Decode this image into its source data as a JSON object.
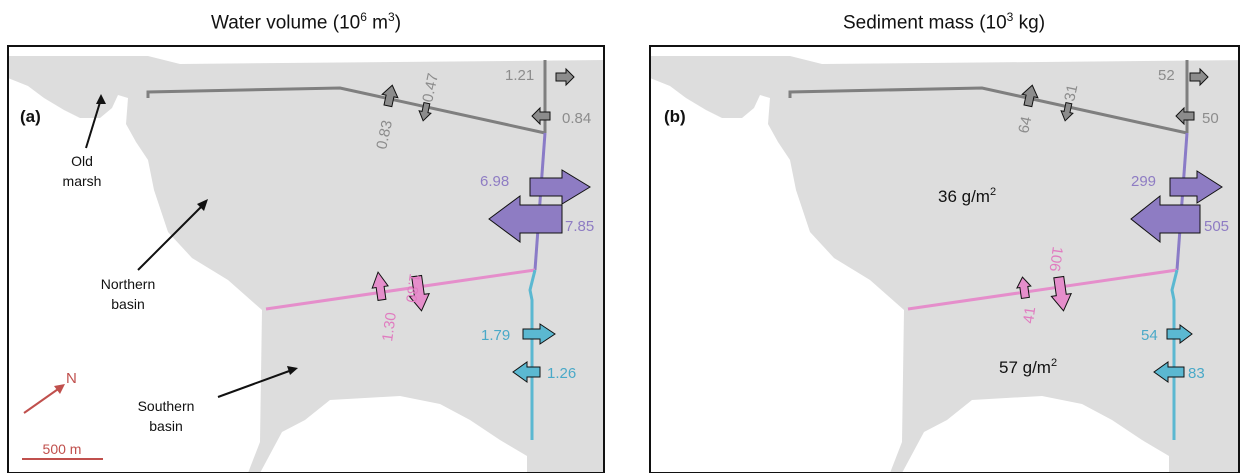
{
  "panels": [
    {
      "id": "a",
      "title": {
        "prefix": "Water volume (10",
        "exp": "6",
        "mid": " m",
        "exp2": "3",
        "suffix": ")"
      },
      "label": "(a)",
      "flux_labels": {
        "gray_out_top": "1.21",
        "gray_in_top": "0.84",
        "gray_west": "0.83",
        "gray_east": "0.47",
        "purple_out": "6.98",
        "purple_in": "7.85",
        "pink_north": "1.30",
        "pink_south": "1.80",
        "blue_out": "1.79",
        "blue_in": "1.26"
      },
      "annotations": {
        "old_marsh": [
          "Old",
          "marsh"
        ],
        "northern_basin": [
          "Northern",
          "basin"
        ],
        "southern_basin": [
          "Southern",
          "basin"
        ],
        "north": "N",
        "scale": "500 m"
      }
    },
    {
      "id": "b",
      "title": {
        "prefix": "Sediment mass (10",
        "exp": "3",
        "mid": " kg)",
        "exp2": "",
        "suffix": ""
      },
      "label": "(b)",
      "flux_labels": {
        "gray_out_top": "52",
        "gray_in_top": "50",
        "gray_west": "64",
        "gray_east": "31",
        "purple_out": "299",
        "purple_in": "505",
        "pink_north": "41",
        "pink_south": "106",
        "blue_out": "54",
        "blue_in": "83"
      },
      "density": {
        "northern": {
          "value": "36 g/m",
          "exp": "2"
        },
        "southern": {
          "value": "57 g/m",
          "exp": "2"
        }
      }
    }
  ],
  "colors": {
    "gray": "#7f7f7f",
    "gray_arrow": "#8c8c8c",
    "purple": "#8e7cc3",
    "purple_line": "#8a7bc7",
    "pink": "#e58ecb",
    "pink_text": "#e07cc0",
    "blue": "#5bb8d1",
    "blue_text": "#4aa9c8",
    "land": "#dddddd",
    "north_arrow": "#c0504d"
  }
}
